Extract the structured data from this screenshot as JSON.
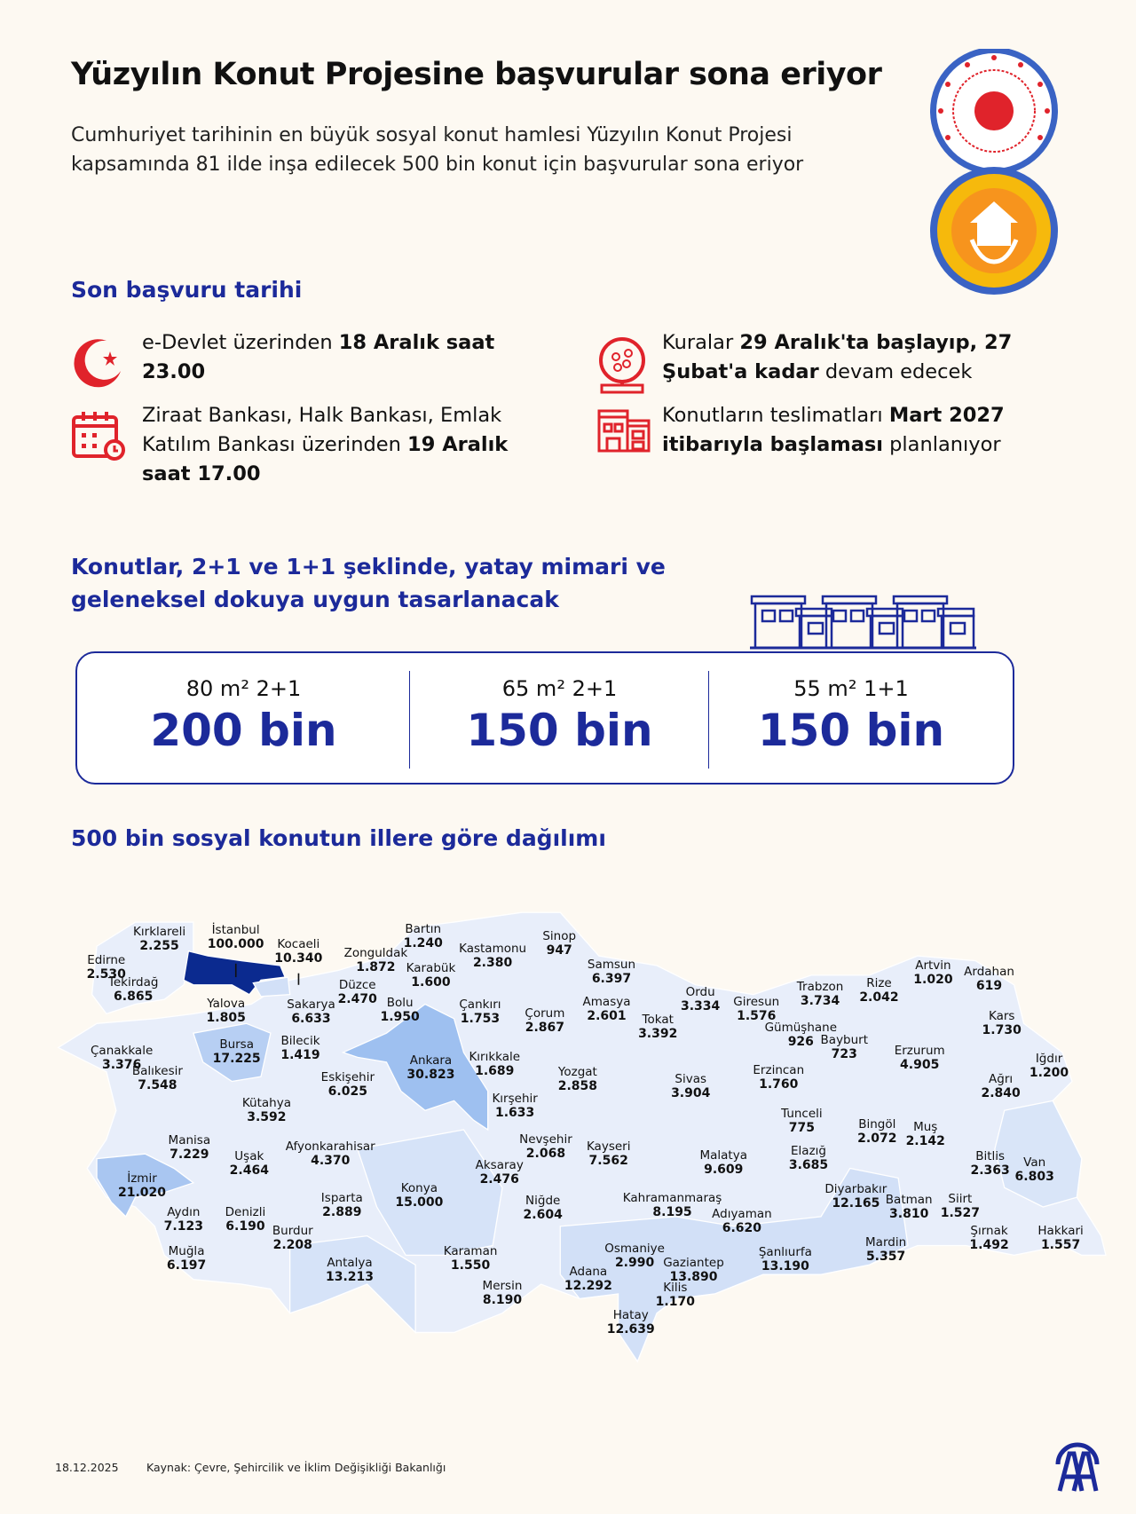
{
  "header": {
    "title": "Yüzyılın Konut Projesine başvurular sona eriyor",
    "subtitle": "Cumhuriyet tarihinin en büyük sosyal konut hamlesi Yüzyılın Konut Projesi kapsamında 81 ilde inşa edilecek 500 bin konut için başvurular sona eriyor"
  },
  "logos": {
    "ministry_seal": "Türkiye Cumhuriyeti Çevre, Şehircilik ve İklim Değişikliği Bakanlığı",
    "project_badge_top": "'Yüzyılın Konut Projesi'",
    "project_badge_bottom": "500 bin sosyal konut"
  },
  "deadline": {
    "heading": "Son başvuru tarihi",
    "items": [
      {
        "icon": "e-devlet-icon",
        "pre": "e-Devlet üzerinden ",
        "bold": "18 Aralık saat 23.00",
        "post": ""
      },
      {
        "icon": "calendar-clock-icon",
        "pre": "Ziraat Bankası, Halk Bankası, Emlak Katılım Bankası üzerinden ",
        "bold": "19 Aralık saat 17.00",
        "post": ""
      },
      {
        "icon": "lottery-drum-icon",
        "pre": "Kuralar ",
        "bold": "29 Aralık'ta başlayıp, 27 Şubat'a kadar",
        "post": " devam edecek"
      },
      {
        "icon": "building-icon",
        "pre": "Konutların teslimatları ",
        "bold": "Mart 2027 itibarıyla başlaması",
        "post": " planlanıyor"
      }
    ]
  },
  "types": {
    "heading": "Konutlar, 2+1 ve 1+1 şeklinde, yatay mimari ve geleneksel dokuya uygun tasarlanacak",
    "specs": [
      {
        "label": "80 m² 2+1",
        "value": "200 bin"
      },
      {
        "label": "65 m² 2+1",
        "value": "150 bin"
      },
      {
        "label": "55 m² 1+1",
        "value": "150 bin"
      }
    ]
  },
  "map": {
    "heading": "500 bin sosyal konutun illere göre dağılımı",
    "colors": {
      "highest": "#0b2a8f",
      "high": "#9ec0f0",
      "mid": "#cfdff7",
      "low": "#e8eefa",
      "lowest": "#f4f6fc"
    },
    "provinces": [
      {
        "name": "Kırklareli",
        "value": "2.255"
      },
      {
        "name": "İstanbul",
        "value": "100.000"
      },
      {
        "name": "Kocaeli",
        "value": "10.340"
      },
      {
        "name": "Edirne",
        "value": "2.530"
      },
      {
        "name": "Tekirdağ",
        "value": "6.865"
      },
      {
        "name": "Yalova",
        "value": "1.805"
      },
      {
        "name": "Sakarya",
        "value": "6.633"
      },
      {
        "name": "Düzce",
        "value": "2.470"
      },
      {
        "name": "Zonguldak",
        "value": "1.872"
      },
      {
        "name": "Bartın",
        "value": "1.240"
      },
      {
        "name": "Karabük",
        "value": "1.600"
      },
      {
        "name": "Kastamonu",
        "value": "2.380"
      },
      {
        "name": "Sinop",
        "value": "947"
      },
      {
        "name": "Bolu",
        "value": "1.950"
      },
      {
        "name": "Çankırı",
        "value": "1.753"
      },
      {
        "name": "Çorum",
        "value": "2.867"
      },
      {
        "name": "Samsun",
        "value": "6.397"
      },
      {
        "name": "Amasya",
        "value": "2.601"
      },
      {
        "name": "Ordu",
        "value": "3.334"
      },
      {
        "name": "Tokat",
        "value": "3.392"
      },
      {
        "name": "Giresun",
        "value": "1.576"
      },
      {
        "name": "Trabzon",
        "value": "3.734"
      },
      {
        "name": "Rize",
        "value": "2.042"
      },
      {
        "name": "Artvin",
        "value": "1.020"
      },
      {
        "name": "Ardahan",
        "value": "619"
      },
      {
        "name": "Gümüşhane",
        "value": "926"
      },
      {
        "name": "Bayburt",
        "value": "723"
      },
      {
        "name": "Kars",
        "value": "1.730"
      },
      {
        "name": "Erzurum",
        "value": "4.905"
      },
      {
        "name": "Iğdır",
        "value": "1.200"
      },
      {
        "name": "Ağrı",
        "value": "2.840"
      },
      {
        "name": "Çanakkale",
        "value": "3.376"
      },
      {
        "name": "Bursa",
        "value": "17.225"
      },
      {
        "name": "Bilecik",
        "value": "1.419"
      },
      {
        "name": "Balıkesir",
        "value": "7.548"
      },
      {
        "name": "Eskişehir",
        "value": "6.025"
      },
      {
        "name": "Ankara",
        "value": "30.823"
      },
      {
        "name": "Kırıkkale",
        "value": "1.689"
      },
      {
        "name": "Yozgat",
        "value": "2.858"
      },
      {
        "name": "Sivas",
        "value": "3.904"
      },
      {
        "name": "Erzincan",
        "value": "1.760"
      },
      {
        "name": "Kütahya",
        "value": "3.592"
      },
      {
        "name": "Kırşehir",
        "value": "1.633"
      },
      {
        "name": "Tunceli",
        "value": "775"
      },
      {
        "name": "Bingöl",
        "value": "2.072"
      },
      {
        "name": "Muş",
        "value": "2.142"
      },
      {
        "name": "Manisa",
        "value": "7.229"
      },
      {
        "name": "Uşak",
        "value": "2.464"
      },
      {
        "name": "Afyonkarahisar",
        "value": "4.370"
      },
      {
        "name": "Nevşehir",
        "value": "2.068"
      },
      {
        "name": "Kayseri",
        "value": "7.562"
      },
      {
        "name": "Malatya",
        "value": "9.609"
      },
      {
        "name": "Elazığ",
        "value": "3.685"
      },
      {
        "name": "Bitlis",
        "value": "2.363"
      },
      {
        "name": "Van",
        "value": "6.803"
      },
      {
        "name": "İzmir",
        "value": "21.020"
      },
      {
        "name": "Aksaray",
        "value": "2.476"
      },
      {
        "name": "Konya",
        "value": "15.000"
      },
      {
        "name": "Diyarbakır",
        "value": "12.165"
      },
      {
        "name": "Batman",
        "value": "3.810"
      },
      {
        "name": "Siirt",
        "value": "1.527"
      },
      {
        "name": "Niğde",
        "value": "2.604"
      },
      {
        "name": "Kahramanmaraş",
        "value": "8.195"
      },
      {
        "name": "Adıyaman",
        "value": "6.620"
      },
      {
        "name": "Isparta",
        "value": "2.889"
      },
      {
        "name": "Aydın",
        "value": "7.123"
      },
      {
        "name": "Denizli",
        "value": "6.190"
      },
      {
        "name": "Burdur",
        "value": "2.208"
      },
      {
        "name": "Şırnak",
        "value": "1.492"
      },
      {
        "name": "Hakkari",
        "value": "1.557"
      },
      {
        "name": "Muğla",
        "value": "6.197"
      },
      {
        "name": "Mardin",
        "value": "5.357"
      },
      {
        "name": "Şanlıurfa",
        "value": "13.190"
      },
      {
        "name": "Antalya",
        "value": "13.213"
      },
      {
        "name": "Karaman",
        "value": "1.550"
      },
      {
        "name": "Osmaniye",
        "value": "2.990"
      },
      {
        "name": "Gaziantep",
        "value": "13.890"
      },
      {
        "name": "Adana",
        "value": "12.292"
      },
      {
        "name": "Mersin",
        "value": "8.190"
      },
      {
        "name": "Kilis",
        "value": "1.170"
      },
      {
        "name": "Hatay",
        "value": "12.639"
      }
    ]
  },
  "footer": {
    "date": "18.12.2025",
    "source": "Kaynak: Çevre, Şehircilik ve İklim Değişikliği Bakanlığı",
    "agency_logo": "AA"
  },
  "colors": {
    "accent_navy": "#1c2a9a",
    "icon_red": "#e0232b",
    "background": "#fdf9f2"
  }
}
